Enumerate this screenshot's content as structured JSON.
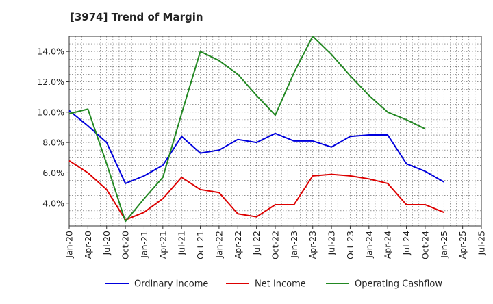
{
  "chart_data": {
    "type": "line",
    "title": "[3974]  Trend of Margin",
    "xlabel": "",
    "ylabel": "",
    "x": [
      "Jan-20",
      "Apr-20",
      "Jul-20",
      "Oct-20",
      "Jan-21",
      "Apr-21",
      "Jul-21",
      "Oct-21",
      "Jan-22",
      "Apr-22",
      "Jul-22",
      "Oct-22",
      "Jan-23",
      "Apr-23",
      "Jul-23",
      "Oct-23",
      "Jan-24",
      "Apr-24",
      "Jul-24",
      "Oct-24",
      "Jan-25",
      "Apr-25"
    ],
    "x_ticks": [
      "Jan-20",
      "Apr-20",
      "Jul-20",
      "Oct-20",
      "Jan-21",
      "Apr-21",
      "Jul-21",
      "Oct-21",
      "Jan-22",
      "Apr-22",
      "Jul-22",
      "Oct-22",
      "Jan-23",
      "Apr-23",
      "Jul-23",
      "Oct-23",
      "Jan-24",
      "Apr-24",
      "Jul-24",
      "Oct-24",
      "Jan-25",
      "Apr-25",
      "Jul-25"
    ],
    "ylim": [
      2.5,
      15.0
    ],
    "y_ticks": [
      4.0,
      6.0,
      8.0,
      10.0,
      12.0,
      14.0
    ],
    "y_tick_labels": [
      "4.0%",
      "6.0%",
      "8.0%",
      "10.0%",
      "12.0%",
      "14.0%"
    ],
    "grid": true,
    "legend_position": "bottom",
    "series": [
      {
        "name": "Ordinary Income",
        "color": "#0000dd",
        "values": [
          10.1,
          9.1,
          8.0,
          5.3,
          5.8,
          6.5,
          8.4,
          7.3,
          7.5,
          8.2,
          8.0,
          8.6,
          8.1,
          8.1,
          7.7,
          8.4,
          8.5,
          8.5,
          6.6,
          6.1,
          5.4,
          null
        ]
      },
      {
        "name": "Net Income",
        "color": "#dd0000",
        "values": [
          6.8,
          6.0,
          4.9,
          2.9,
          3.4,
          4.3,
          5.7,
          4.9,
          4.7,
          3.3,
          3.1,
          3.9,
          3.9,
          5.8,
          5.9,
          5.8,
          5.6,
          5.3,
          3.9,
          3.9,
          3.4,
          null
        ]
      },
      {
        "name": "Operating Cashflow",
        "color": "#228822",
        "values": [
          9.9,
          10.2,
          6.6,
          2.8,
          4.3,
          5.7,
          9.9,
          14.0,
          13.4,
          12.5,
          11.1,
          9.8,
          12.6,
          15.0,
          13.8,
          12.4,
          11.1,
          10.0,
          9.5,
          8.9,
          null,
          null
        ]
      }
    ]
  }
}
